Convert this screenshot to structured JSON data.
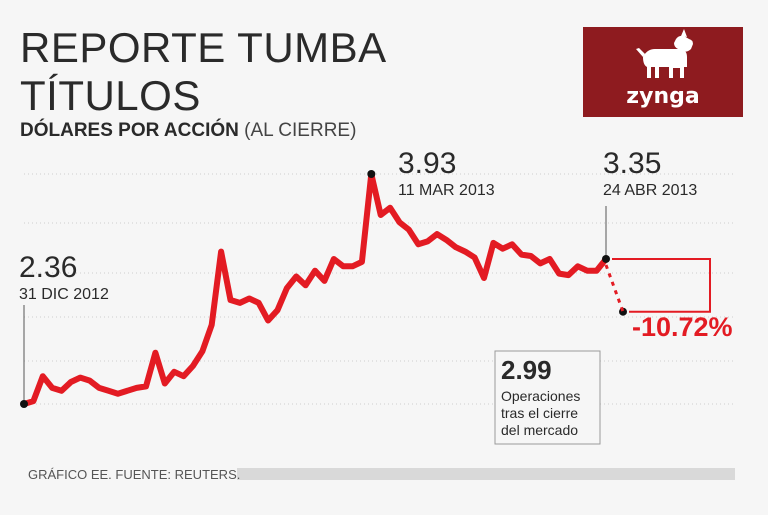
{
  "title_line1": "REPORTE TUMBA",
  "title_line2": "TÍTULOS",
  "subtitle_bold": "DÓLARES POR ACCIÓN",
  "subtitle_light": "(AL CIERRE)",
  "logo_text": "zynga",
  "logo_icon": "dog-icon",
  "source": "GRÁFICO EE. FUENTE: REUTERS.",
  "colors": {
    "line": "#e31b23",
    "logo_bg": "#8e1b1f",
    "text": "#2a2a2a",
    "grid": "#cfcfcf"
  },
  "chart_data": {
    "type": "line",
    "title": "REPORTE TUMBA TÍTULOS",
    "ylabel": "DÓLARES POR ACCIÓN (AL CIERRE)",
    "x_start": "31 DIC 2012",
    "x_end": "24 ABR 2013",
    "ylim": [
      2.3,
      4.1
    ],
    "grid": true,
    "values": [
      2.36,
      2.38,
      2.55,
      2.47,
      2.45,
      2.51,
      2.54,
      2.52,
      2.47,
      2.45,
      2.43,
      2.45,
      2.47,
      2.48,
      2.71,
      2.5,
      2.58,
      2.55,
      2.62,
      2.72,
      2.9,
      3.4,
      3.07,
      3.05,
      3.08,
      3.05,
      2.93,
      3.0,
      3.15,
      3.23,
      3.17,
      3.27,
      3.2,
      3.35,
      3.3,
      3.3,
      3.33,
      3.93,
      3.65,
      3.7,
      3.6,
      3.55,
      3.45,
      3.47,
      3.52,
      3.48,
      3.43,
      3.4,
      3.36,
      3.22,
      3.46,
      3.42,
      3.45,
      3.38,
      3.37,
      3.32,
      3.35,
      3.25,
      3.24,
      3.3,
      3.27,
      3.27,
      3.35
    ],
    "annotations": [
      {
        "value": "2.36",
        "date": "31 DIC 2012"
      },
      {
        "value": "3.93",
        "date": "11 MAR 2013"
      },
      {
        "value": "3.35",
        "date": "24 ABR 2013"
      },
      {
        "value": "2.99",
        "label": "Operaciones tras el cierre del mercado"
      },
      {
        "value": "-10.72%"
      }
    ]
  }
}
